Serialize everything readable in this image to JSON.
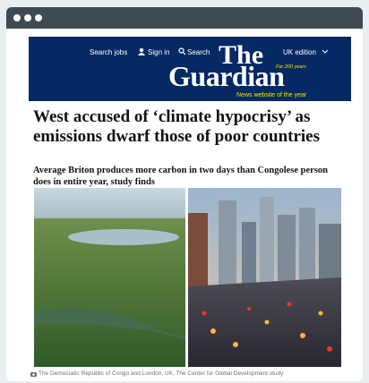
{
  "header": {
    "nav": [
      "Search jobs",
      "Sign in",
      "Search"
    ],
    "edition": "UK edition",
    "logo_top": "The",
    "logo_bottom": "Guardian",
    "tagline_small": "For 200 years",
    "award": "News website of the year"
  },
  "article": {
    "headline": "West accused of ‘climate hypocrisy’ as emissions dwarf those of poor countries",
    "standfirst": "Average Briton produces more carbon in two days than Congolese person does in entire year, study finds",
    "caption": "The Democratic Republic of Congo and London, UK. The Center for Global Development study"
  }
}
